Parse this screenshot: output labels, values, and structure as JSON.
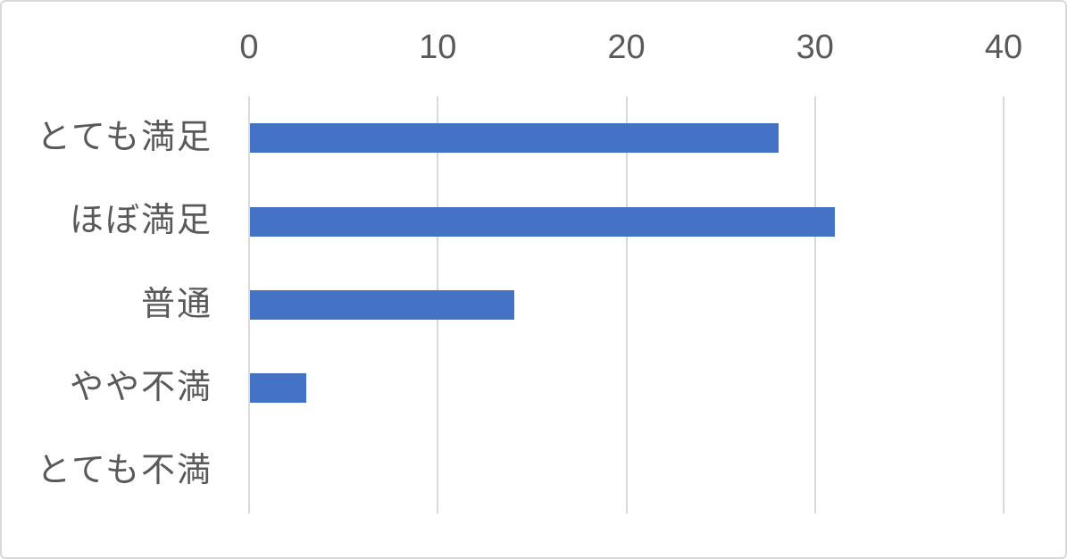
{
  "chart_data": {
    "type": "bar",
    "orientation": "horizontal",
    "title": "",
    "xlabel": "",
    "ylabel": "",
    "categories": [
      "とても満足",
      "ほぼ満足",
      "普通",
      "やや不満",
      "とても不満"
    ],
    "values": [
      28,
      31,
      14,
      3,
      0
    ],
    "x_ticks": [
      0,
      10,
      20,
      30,
      40
    ],
    "xlim": [
      0,
      40
    ],
    "grid": true,
    "x_axis_position": "top",
    "legend": "none",
    "colors": {
      "bar": "#4472C4",
      "gridline": "#D9D9D9",
      "axis_text": "#595959",
      "frame_border": "#D9D9D9",
      "background": "#FFFFFF"
    }
  }
}
